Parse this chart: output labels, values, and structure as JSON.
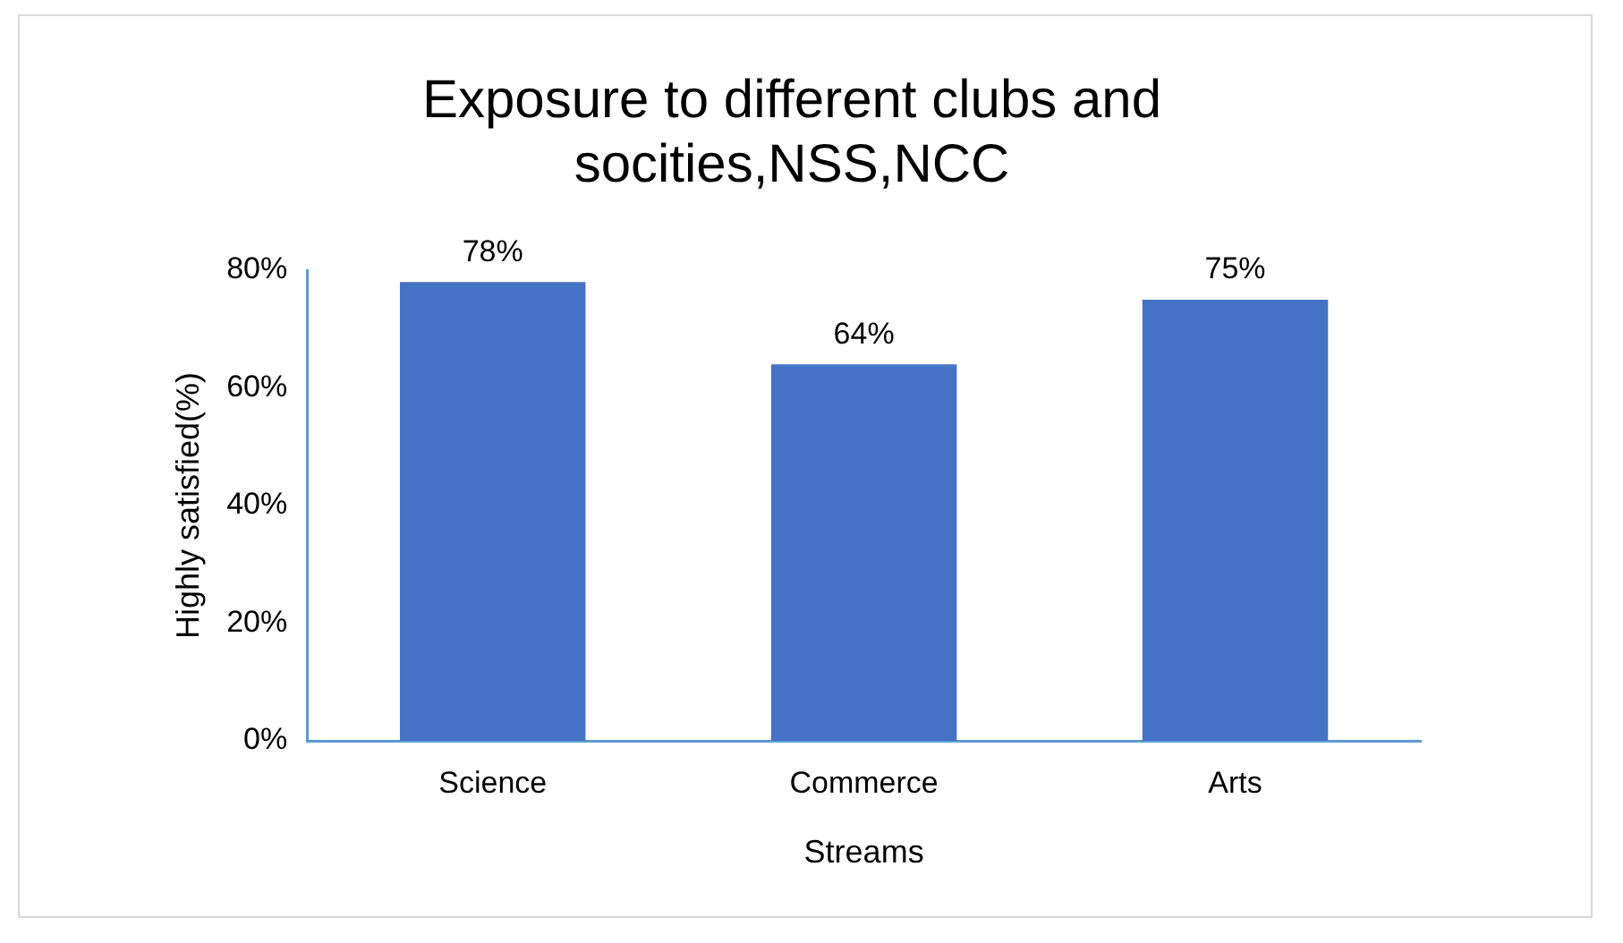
{
  "chart_data": {
    "type": "bar",
    "title": "Exposure to different clubs and socities,NSS,NCC",
    "xlabel": "Streams",
    "ylabel": "Highly satisfied(%)",
    "categories": [
      "Science",
      "Commerce",
      "Arts"
    ],
    "values": [
      78,
      64,
      75
    ],
    "value_labels": [
      "78%",
      "64%",
      "75%"
    ],
    "color": "#4472c4",
    "ylim": [
      0,
      80
    ],
    "yticks": [
      {
        "value": 0,
        "label": "0%"
      },
      {
        "value": 20,
        "label": "20%"
      },
      {
        "value": 40,
        "label": "40%"
      },
      {
        "value": 60,
        "label": "60%"
      },
      {
        "value": 80,
        "label": "80%"
      }
    ],
    "grid": false,
    "legend": false
  }
}
